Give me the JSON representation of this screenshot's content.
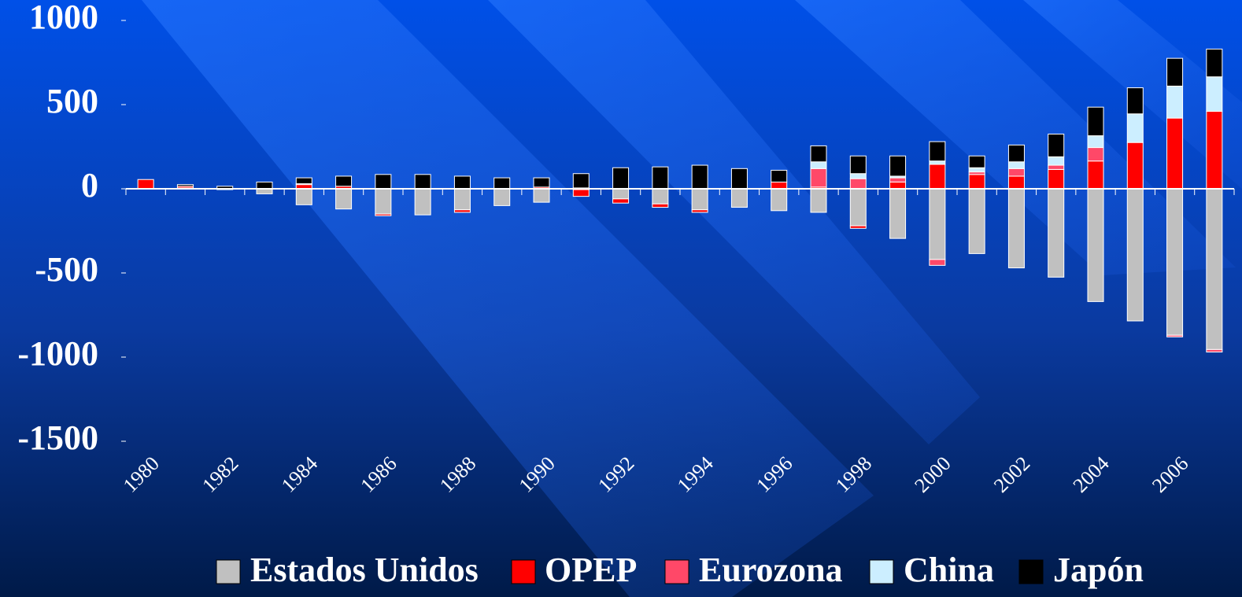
{
  "chart_data": {
    "type": "stacked_bar",
    "categories": [
      "1980",
      null,
      "1982",
      null,
      "1984",
      null,
      "1986",
      null,
      "1988",
      null,
      "1990",
      null,
      "1992",
      null,
      "1994",
      null,
      "1996",
      null,
      "1998",
      null,
      "2000",
      null,
      "2002",
      null,
      "2004",
      null,
      "2006",
      null
    ],
    "series": [
      {
        "name": "Estados Unidos",
        "color": "#c0c0c0",
        "values": [
          0,
          5,
          0,
          -30,
          -95,
          -120,
          -150,
          -155,
          -125,
          -100,
          -80,
          -5,
          -60,
          -90,
          -125,
          -110,
          -130,
          -140,
          -220,
          -295,
          -420,
          -385,
          -470,
          -525,
          -670,
          -785,
          -870,
          -955
        ]
      },
      {
        "name": "OPEP",
        "color": "#ff0000",
        "values": [
          55,
          10,
          -5,
          0,
          25,
          15,
          -10,
          0,
          -15,
          0,
          10,
          -40,
          -25,
          -20,
          -15,
          0,
          40,
          10,
          -15,
          40,
          145,
          85,
          75,
          115,
          165,
          275,
          420,
          460
        ]
      },
      {
        "name": "Eurozona",
        "color": "#ff4868",
        "values": [
          0,
          0,
          0,
          0,
          5,
          0,
          0,
          0,
          0,
          0,
          0,
          5,
          0,
          0,
          0,
          0,
          0,
          110,
          60,
          25,
          -35,
          15,
          45,
          25,
          80,
          0,
          -10,
          -15
        ]
      },
      {
        "name": "China",
        "color": "#cceeff",
        "values": [
          0,
          0,
          0,
          0,
          0,
          0,
          0,
          0,
          0,
          0,
          0,
          0,
          0,
          0,
          0,
          0,
          0,
          40,
          30,
          10,
          20,
          25,
          40,
          50,
          70,
          170,
          190,
          205
        ]
      },
      {
        "name": "Japón",
        "color": "#000000",
        "values": [
          0,
          10,
          15,
          40,
          35,
          60,
          85,
          85,
          75,
          65,
          55,
          85,
          125,
          130,
          140,
          120,
          70,
          95,
          105,
          120,
          115,
          70,
          100,
          135,
          170,
          155,
          165,
          165
        ]
      }
    ],
    "ylim": [
      -1500,
      1000
    ],
    "yticks": [
      -1500,
      -1000,
      -500,
      0,
      500,
      1000
    ],
    "legend": "bottom"
  }
}
